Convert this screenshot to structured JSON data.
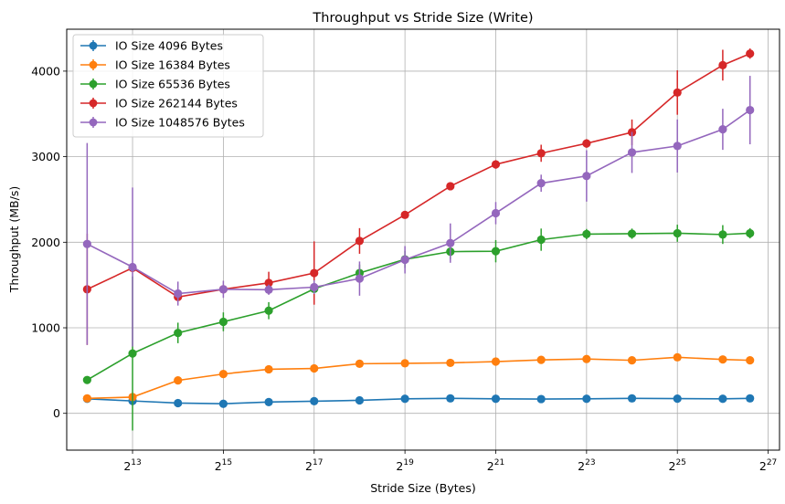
{
  "chart_data": {
    "type": "line",
    "title": "Throughput vs Stride Size (Write)",
    "xlabel": "Stride Size (Bytes)",
    "ylabel": "Throughput (MB/s)",
    "x_scale": "log2",
    "xlim_log2": [
      11.55,
      27.25
    ],
    "ylim": [
      -430,
      4490
    ],
    "grid": true,
    "legend_position": "top-left",
    "x_ticks": [
      {
        "base": "2",
        "exp": "13",
        "log2": 13
      },
      {
        "base": "2",
        "exp": "15",
        "log2": 15
      },
      {
        "base": "2",
        "exp": "17",
        "log2": 17
      },
      {
        "base": "2",
        "exp": "19",
        "log2": 19
      },
      {
        "base": "2",
        "exp": "21",
        "log2": 21
      },
      {
        "base": "2",
        "exp": "23",
        "log2": 23
      },
      {
        "base": "2",
        "exp": "25",
        "log2": 25
      },
      {
        "base": "2",
        "exp": "27",
        "log2": 27
      }
    ],
    "y_ticks": [
      {
        "label": "0",
        "value": 0
      },
      {
        "label": "1000",
        "value": 1000
      },
      {
        "label": "2000",
        "value": 2000
      },
      {
        "label": "3000",
        "value": 3000
      },
      {
        "label": "4000",
        "value": 4000
      }
    ],
    "x_log2": [
      12,
      13,
      14,
      15,
      16,
      17,
      18,
      19,
      20,
      21,
      22,
      23,
      24,
      25,
      26,
      26.6
    ],
    "series": [
      {
        "name": "IO Size 4096 Bytes",
        "color": "#1f77b4",
        "values": [
          170,
          145,
          120,
          112,
          132,
          142,
          152,
          170,
          175,
          170,
          167,
          170,
          175,
          172,
          170,
          175
        ],
        "errors": [
          15,
          15,
          10,
          10,
          10,
          10,
          10,
          10,
          10,
          10,
          10,
          10,
          10,
          10,
          10,
          10
        ]
      },
      {
        "name": "IO Size 16384 Bytes",
        "color": "#ff7f0e",
        "values": [
          175,
          190,
          385,
          460,
          515,
          525,
          580,
          585,
          590,
          605,
          625,
          635,
          620,
          655,
          630,
          620
        ],
        "errors": [
          20,
          20,
          25,
          20,
          20,
          20,
          20,
          20,
          20,
          25,
          20,
          25,
          20,
          20,
          20,
          20
        ]
      },
      {
        "name": "IO Size 65536 Bytes",
        "color": "#2ca02c",
        "values": [
          390,
          700,
          940,
          1070,
          1200,
          1455,
          1640,
          1800,
          1890,
          1895,
          2030,
          2095,
          2100,
          2105,
          2090,
          2105
        ],
        "errors": [
          40,
          900,
          120,
          110,
          100,
          100,
          100,
          100,
          90,
          130,
          130,
          60,
          60,
          100,
          110,
          60
        ]
      },
      {
        "name": "IO Size 262144 Bytes",
        "color": "#d62728",
        "values": [
          1450,
          1700,
          1360,
          1450,
          1525,
          1640,
          2015,
          2320,
          2655,
          2910,
          3040,
          3155,
          3285,
          3750,
          4070,
          4205
        ],
        "errors": [
          650,
          50,
          50,
          50,
          130,
          370,
          150,
          30,
          40,
          50,
          100,
          50,
          150,
          260,
          180,
          60
        ]
      },
      {
        "name": "IO Size 1048576 Bytes",
        "color": "#9467bd",
        "values": [
          1980,
          1710,
          1400,
          1450,
          1445,
          1475,
          1575,
          1795,
          1990,
          2340,
          2690,
          2775,
          3050,
          3125,
          3320,
          3545
        ],
        "errors": [
          1180,
          930,
          140,
          100,
          60,
          80,
          200,
          160,
          230,
          130,
          100,
          300,
          240,
          310,
          240,
          400
        ]
      }
    ]
  }
}
